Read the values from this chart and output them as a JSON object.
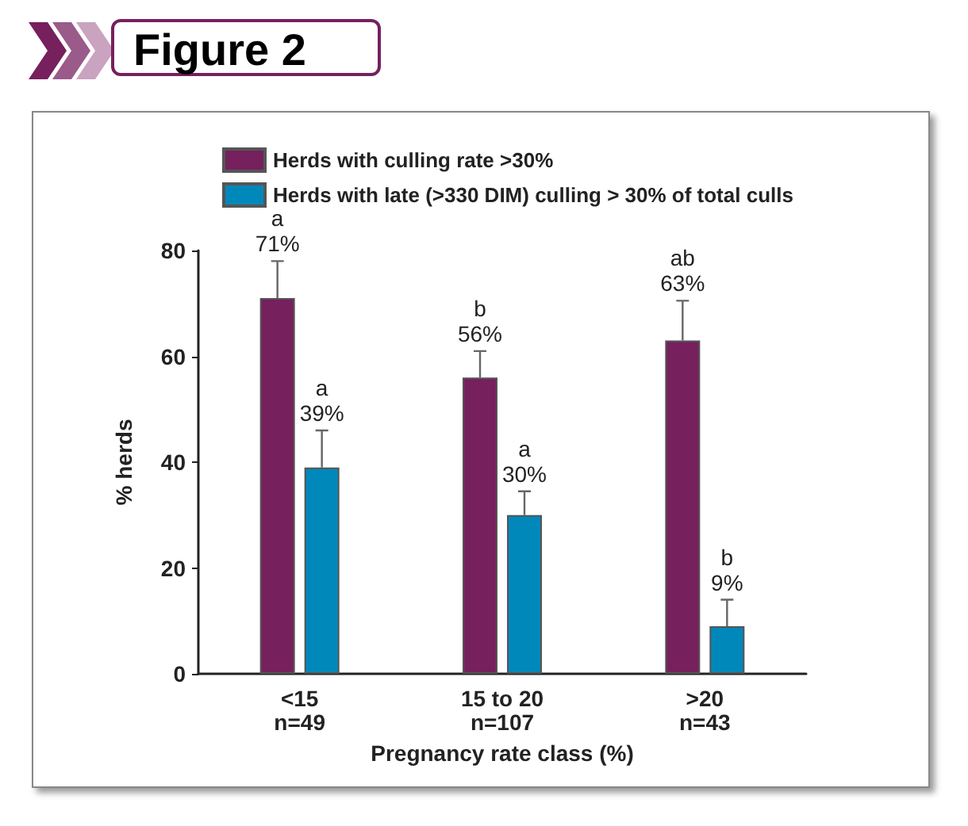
{
  "chart_data": {
    "type": "bar",
    "title": "Figure 2",
    "xlabel": "Pregnancy rate class (%)",
    "ylabel": "% herds",
    "categories": [
      "<15\nn=49",
      "15 to 20\nn=107",
      ">20\nn=43"
    ],
    "series": [
      {
        "name": "Herds with culling rate >30%",
        "color": "#76205e",
        "values": [
          71,
          56,
          63
        ],
        "errors": [
          [
            71,
            78
          ],
          [
            56,
            61
          ],
          [
            63,
            70.5
          ]
        ],
        "value_labels": [
          "a\n71%",
          "b\n56%",
          "ab\n63%"
        ]
      },
      {
        "name": "Herds with late (>330 DIM) culling > 30% of total culls",
        "color": "#0088bb",
        "values": [
          39,
          30,
          9
        ],
        "errors": [
          [
            39,
            46
          ],
          [
            30,
            34.5
          ],
          [
            9,
            14
          ]
        ],
        "value_labels": [
          "a\n39%",
          "a\n30%",
          "b\n9%"
        ]
      }
    ],
    "ylim": [
      0,
      80
    ],
    "yticks": [
      0,
      20,
      40,
      60,
      80
    ],
    "grid": false,
    "legend": "top left"
  }
}
